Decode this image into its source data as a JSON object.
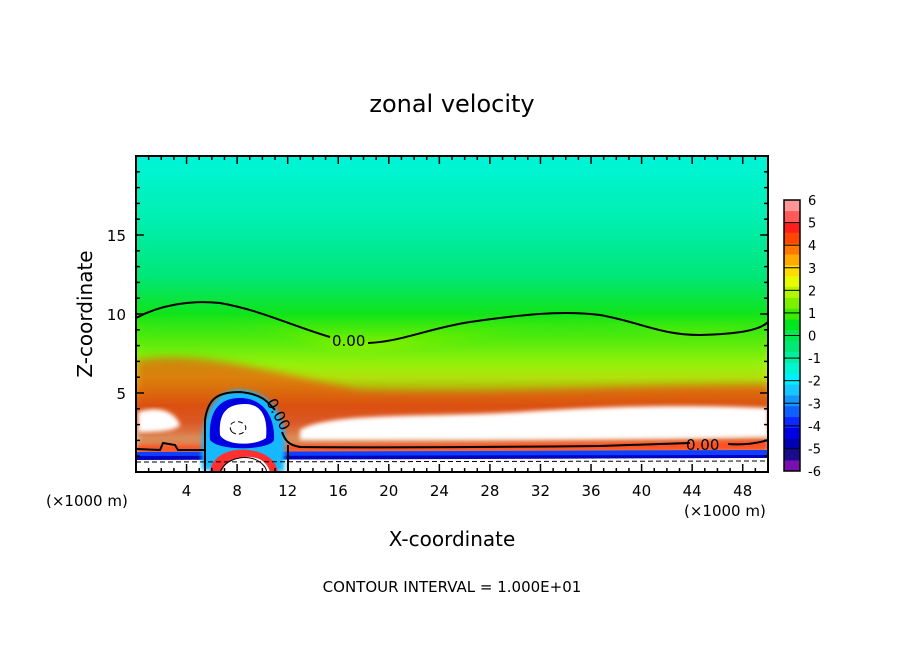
{
  "chart_data": {
    "type": "heatmap",
    "title": "zonal velocity",
    "xlabel": "X-coordinate",
    "ylabel": "Z-coordinate",
    "x_unit_label": "(×1000 m)",
    "xlim": [
      0,
      50
    ],
    "ylim": [
      0,
      20
    ],
    "x_ticks": [
      4,
      8,
      12,
      16,
      20,
      24,
      28,
      32,
      36,
      40,
      44,
      48
    ],
    "y_ticks": [
      5,
      10,
      15
    ],
    "colorbar": {
      "ticks": [
        6,
        5,
        4,
        3,
        2,
        1,
        0,
        -1,
        -2,
        -3,
        -4,
        -5,
        -6
      ],
      "colors": [
        "#7a0fb0",
        "#1a0a8c",
        "#0000b4",
        "#0000e6",
        "#0a28ff",
        "#1060ff",
        "#1496ff",
        "#14c8ff",
        "#00f0ff",
        "#00f5d2",
        "#00f0a0",
        "#00e878",
        "#00e850",
        "#00e61e",
        "#3ceb00",
        "#7cf000",
        "#b4f500",
        "#e6fa00",
        "#ffdc00",
        "#ffaa00",
        "#ff7800",
        "#ff4600",
        "#ff1e1e",
        "#ff5a5a",
        "#ff9696"
      ]
    },
    "contour_labels": [
      "0.00",
      "0.00",
      "0.00"
    ],
    "contour_interval_text": "CONTOUR INTERVAL = 1.000E+01"
  }
}
